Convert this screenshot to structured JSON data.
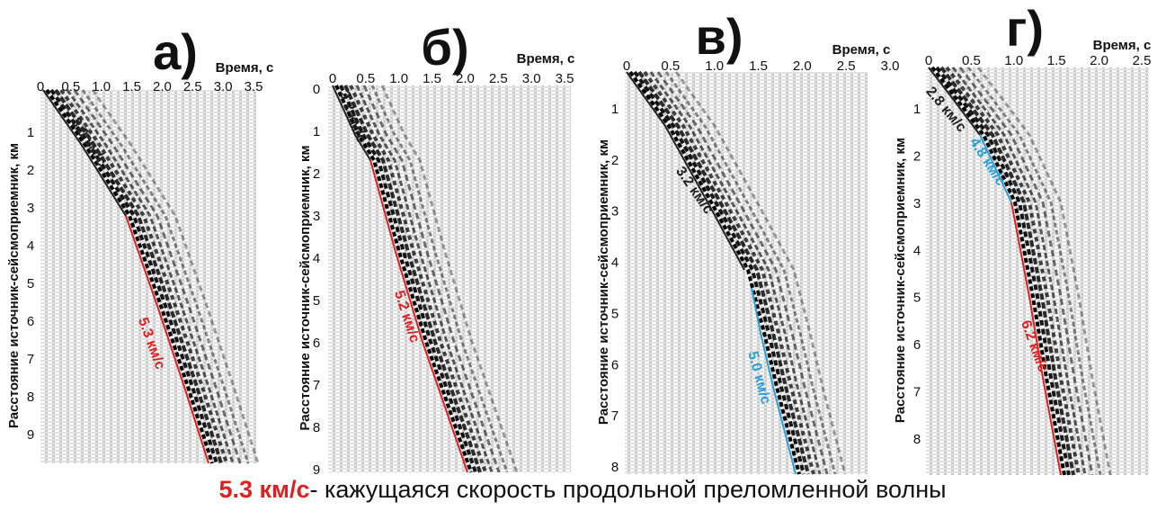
{
  "panels": [
    {
      "label": "а)",
      "time_label": "Время, с",
      "x_ticks": [
        "0",
        "0.5",
        "1.0",
        "1.5",
        "2.0",
        "2.5",
        "3.0",
        "3.5"
      ],
      "y_title": "Расстояние источник-сейсмоприемник, км",
      "y_ticks": [
        "1",
        "2",
        "3",
        "4",
        "5",
        "6",
        "7",
        "8",
        "9"
      ],
      "annotations": [
        {
          "text": "3.0 км/с",
          "color": "#222222"
        },
        {
          "text": "5.3 км/с",
          "color": "#e02020"
        }
      ]
    },
    {
      "label": "б)",
      "time_label": "Время, с",
      "x_ticks": [
        "0",
        "0.5",
        "1.0",
        "1.5",
        "2.0",
        "2.5",
        "3.0",
        "3.5"
      ],
      "y_title": "Расстояние источник-сейсмоприемник, км",
      "y_ticks": [
        "0",
        "1",
        "2",
        "3",
        "4",
        "5",
        "6",
        "7",
        "8",
        "9"
      ],
      "annotations": [
        {
          "text": "3.2 км/с",
          "color": "#222222"
        },
        {
          "text": "5.2 км/с",
          "color": "#e02020"
        }
      ]
    },
    {
      "label": "в)",
      "time_label": "Время, с",
      "x_ticks": [
        "0",
        "0.5",
        "1.0",
        "1.5",
        "2.0",
        "2.5",
        "3.0"
      ],
      "y_title": "Расстояние источник-сейсмоприемник, км",
      "y_ticks": [
        "1",
        "2",
        "3",
        "4",
        "5",
        "6",
        "7",
        "8"
      ],
      "annotations": [
        {
          "text": "3.2 км/с",
          "color": "#222222"
        },
        {
          "text": "5.0 км/с",
          "color": "#2a9fd8"
        }
      ]
    },
    {
      "label": "г)",
      "time_label": "Время, с",
      "x_ticks": [
        "0",
        "0.5",
        "1.0",
        "1.5",
        "2.0",
        "2.5"
      ],
      "y_title": "Расстояние источник-сейсмоприемник, км",
      "y_ticks": [
        "1",
        "2",
        "3",
        "4",
        "5",
        "6",
        "7",
        "8"
      ],
      "annotations": [
        {
          "text": "2.8 км/с",
          "color": "#222222"
        },
        {
          "text": "4.8 км/с",
          "color": "#2a9fd8"
        },
        {
          "text": "6.2 км/с",
          "color": "#e02020"
        }
      ]
    }
  ],
  "caption": {
    "highlight": "5.3 км/с",
    "text": "- кажущаяся скорость продольной преломленной волны"
  }
}
